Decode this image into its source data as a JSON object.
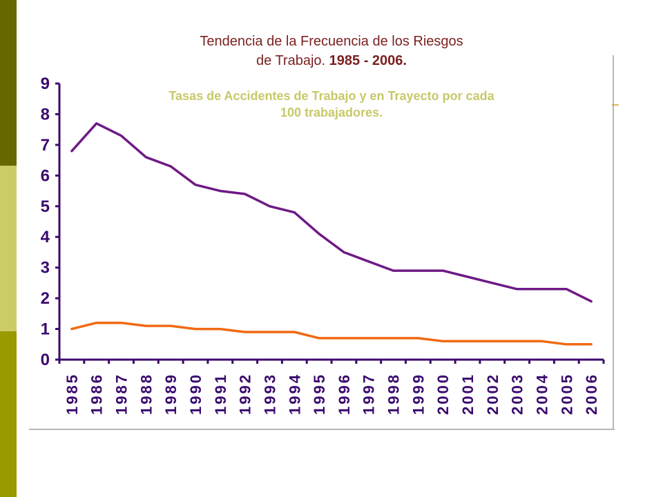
{
  "page": {
    "colors": {
      "band_top": "#676700",
      "band_mid": "#cccc66",
      "band_bottom": "#999900",
      "axis": "#3a0a6e",
      "series_1": "#6e1a86",
      "series_2": "#f06a12",
      "title": "#7b1f1f",
      "subtitle": "#c8c86a"
    }
  },
  "chart_data": {
    "type": "line",
    "title_line1": "Tendencia de la Frecuencia de los Riesgos",
    "title_line2": "de Trabajo. ",
    "title_years": "1985 - 2006.",
    "subtitle": "Tasas de Accidentes de Trabajo y en Trayecto por cada 100 trabajadores.",
    "xlabel": "",
    "ylabel": "",
    "ylim": [
      0,
      9
    ],
    "yticks": [
      "0",
      "1",
      "2",
      "3",
      "4",
      "5",
      "6",
      "7",
      "8",
      "9"
    ],
    "categories": [
      "1985",
      "1986",
      "1987",
      "1988",
      "1989",
      "1990",
      "1991",
      "1992",
      "1993",
      "1994",
      "1995",
      "1996",
      "1997",
      "1998",
      "1999",
      "2000",
      "2001",
      "2002",
      "2003",
      "2004",
      "2005",
      "2006"
    ],
    "series": [
      {
        "color": "#6e1a86",
        "values": [
          6.8,
          7.7,
          7.3,
          6.6,
          6.3,
          5.7,
          5.5,
          5.4,
          5.0,
          4.8,
          4.1,
          3.5,
          3.2,
          2.9,
          2.9,
          2.9,
          2.7,
          2.5,
          2.3,
          2.3,
          2.3,
          1.9
        ]
      },
      {
        "color": "#f06a12",
        "values": [
          1.0,
          1.2,
          1.2,
          1.1,
          1.1,
          1.0,
          1.0,
          0.9,
          0.9,
          0.9,
          0.7,
          0.7,
          0.7,
          0.7,
          0.7,
          0.6,
          0.6,
          0.6,
          0.6,
          0.6,
          0.5,
          0.5
        ]
      }
    ],
    "grid": false,
    "legend": "none"
  }
}
